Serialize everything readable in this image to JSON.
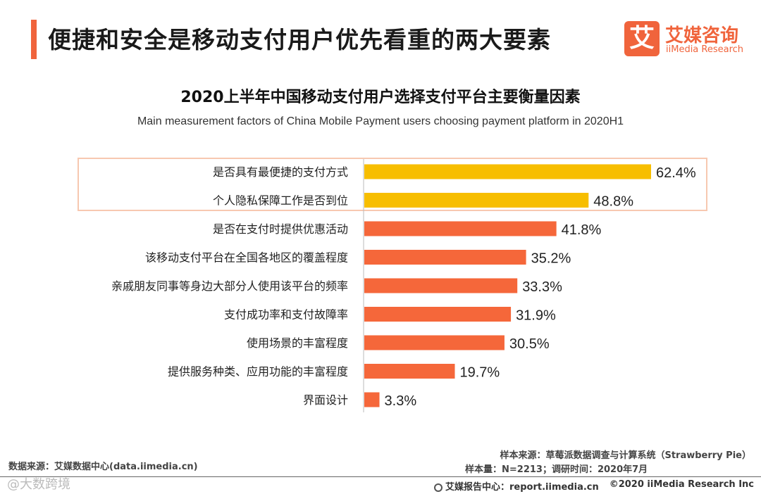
{
  "header": {
    "title": "便捷和安全是移动支付用户优先看重的两大要素",
    "logo_cn": "艾媒咨询",
    "logo_en": "iiMedia Research",
    "logo_glyph": "艾"
  },
  "colors": {
    "accent": "#F0643C",
    "highlight_bar": "#F7BE00",
    "regular_bar": "#F5673A",
    "highlight_border": "#F7C8B0"
  },
  "chart_data": {
    "type": "bar",
    "orientation": "horizontal",
    "title": "2020上半年中国移动支付用户选择支付平台主要衡量因素",
    "subtitle": "Main measurement factors of China Mobile Payment users choosing payment platform in 2020H1",
    "categories": [
      "是否具有最便捷的支付方式",
      "个人隐私保障工作是否到位",
      "是否在支付时提供优惠活动",
      "该移动支付平台在全国各地区的覆盖程度",
      "亲戚朋友同事等身边大部分人使用该平台的频率",
      "支付成功率和支付故障率",
      "使用场景的丰富程度",
      "提供服务种类、应用功能的丰富程度",
      "界面设计"
    ],
    "values": [
      62.4,
      48.8,
      41.8,
      35.2,
      33.3,
      31.9,
      30.5,
      19.7,
      3.3
    ],
    "value_labels": [
      "62.4%",
      "48.8%",
      "41.8%",
      "35.2%",
      "33.3%",
      "31.9%",
      "30.5%",
      "19.7%",
      "3.3%"
    ],
    "highlighted": [
      0,
      1
    ],
    "xlim": [
      0,
      62.4
    ],
    "grid": false,
    "legend": "none"
  },
  "footer": {
    "source": "数据来源：艾媒数据中心(data.iimedia.cn)",
    "sample_source": "样本来源：草莓派数据调查与计算系统（Strawberry Pie）",
    "sample_size": "样本量：N=2213；调研时间：2020年7月",
    "report_center": "艾媒报告中心：report.iimedia.cn",
    "copyright": "©2020  iiMedia Research  Inc",
    "watermark": "@大数跨境"
  }
}
